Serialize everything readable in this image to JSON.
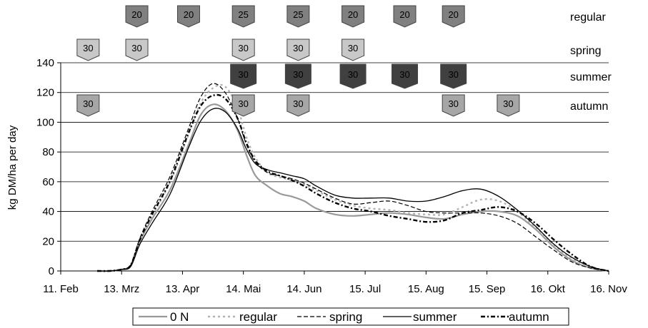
{
  "chart_data": {
    "type": "line",
    "title": "",
    "xlabel": "",
    "ylabel": "kg DM/ha per day",
    "ylim": [
      0,
      140
    ],
    "yticks": [
      0,
      20,
      40,
      60,
      80,
      100,
      120,
      140
    ],
    "xlim": [
      0,
      9
    ],
    "xtick_labels": [
      "11. Feb",
      "13. Mrz",
      "13. Apr",
      "14. Mai",
      "14. Jun",
      "15. Jul",
      "15. Aug",
      "15. Sep",
      "16. Okt",
      "16. Nov"
    ],
    "grid": "horizontal",
    "legend_position": "bottom",
    "series": [
      {
        "name": "0 N",
        "color": "#999999",
        "style": "solid",
        "x": [
          0.6,
          0.8,
          1.0,
          1.15,
          1.3,
          1.5,
          1.8,
          2.1,
          2.3,
          2.5,
          2.7,
          2.9,
          3.05,
          3.2,
          3.4,
          3.6,
          3.8,
          4.0,
          4.2,
          4.5,
          4.8,
          5.1,
          5.4,
          5.7,
          6.0,
          6.3,
          6.6,
          6.9,
          7.2,
          7.5,
          7.8,
          8.1,
          8.4,
          8.7,
          9.0
        ],
        "y": [
          0,
          0,
          1,
          4,
          20,
          35,
          55,
          85,
          105,
          112,
          108,
          95,
          78,
          64,
          57,
          52,
          50,
          47,
          42,
          38,
          37,
          38,
          39,
          38,
          36,
          35,
          38,
          40,
          40,
          37,
          28,
          16,
          7,
          2,
          0
        ]
      },
      {
        "name": "regular",
        "color": "#b3b3b3",
        "style": "dot",
        "x": [
          0.6,
          0.8,
          1.0,
          1.15,
          1.3,
          1.5,
          1.8,
          2.1,
          2.3,
          2.5,
          2.7,
          2.9,
          3.05,
          3.2,
          3.4,
          3.6,
          3.8,
          4.0,
          4.2,
          4.5,
          4.8,
          5.1,
          5.4,
          5.7,
          6.0,
          6.3,
          6.6,
          6.9,
          7.2,
          7.5,
          7.8,
          8.1,
          8.4,
          8.7,
          9.0
        ],
        "y": [
          0,
          0,
          1,
          4,
          21,
          37,
          60,
          92,
          113,
          123,
          124,
          110,
          90,
          76,
          66,
          63,
          61,
          58,
          54,
          48,
          44,
          42,
          41,
          39,
          38,
          38,
          43,
          48,
          47,
          40,
          29,
          17,
          8,
          2,
          0
        ]
      },
      {
        "name": "spring",
        "color": "#000000",
        "style": "dash",
        "x": [
          0.6,
          0.8,
          1.0,
          1.15,
          1.3,
          1.5,
          1.8,
          2.1,
          2.3,
          2.5,
          2.7,
          2.9,
          3.05,
          3.2,
          3.4,
          3.6,
          3.8,
          4.0,
          4.2,
          4.5,
          4.8,
          5.1,
          5.4,
          5.7,
          6.0,
          6.3,
          6.6,
          6.9,
          7.2,
          7.5,
          7.8,
          8.1,
          8.4,
          8.7,
          9.0
        ],
        "y": [
          0,
          0,
          1,
          4,
          22,
          40,
          64,
          96,
          117,
          126,
          120,
          103,
          85,
          73,
          66,
          64,
          62,
          59,
          55,
          49,
          45,
          46,
          47,
          44,
          40,
          39,
          39,
          39,
          37,
          32,
          23,
          14,
          6,
          2,
          0
        ]
      },
      {
        "name": "summer",
        "color": "#000000",
        "style": "solid",
        "x": [
          0.6,
          0.8,
          1.0,
          1.15,
          1.3,
          1.5,
          1.8,
          2.1,
          2.3,
          2.5,
          2.7,
          2.9,
          3.05,
          3.2,
          3.4,
          3.6,
          3.8,
          4.0,
          4.2,
          4.5,
          4.8,
          5.1,
          5.4,
          5.7,
          6.0,
          6.3,
          6.6,
          6.9,
          7.2,
          7.5,
          7.8,
          8.1,
          8.4,
          8.7,
          9.0
        ],
        "y": [
          0,
          0,
          1,
          3,
          18,
          32,
          52,
          83,
          101,
          109,
          107,
          96,
          82,
          72,
          68,
          66,
          64,
          62,
          57,
          51,
          49,
          49,
          49,
          47,
          47,
          50,
          54,
          55,
          50,
          41,
          30,
          18,
          9,
          3,
          0
        ]
      },
      {
        "name": "autumn",
        "color": "#000000",
        "style": "dashdot",
        "x": [
          0.6,
          0.8,
          1.0,
          1.15,
          1.3,
          1.5,
          1.8,
          2.1,
          2.3,
          2.5,
          2.7,
          2.9,
          3.05,
          3.2,
          3.4,
          3.6,
          3.8,
          4.0,
          4.2,
          4.5,
          4.8,
          5.1,
          5.4,
          5.7,
          6.0,
          6.3,
          6.6,
          6.9,
          7.2,
          7.5,
          7.8,
          8.1,
          8.4,
          8.7,
          9.0
        ],
        "y": [
          0,
          0,
          1,
          4,
          21,
          38,
          61,
          93,
          111,
          118,
          116,
          103,
          86,
          74,
          67,
          64,
          61,
          57,
          52,
          46,
          42,
          40,
          37,
          35,
          33,
          34,
          39,
          41,
          43,
          40,
          32,
          21,
          11,
          3,
          0
        ]
      }
    ],
    "events": [
      {
        "name": "regular",
        "fill": "#808080",
        "markers": [
          {
            "x": 1.25,
            "label": "20"
          },
          {
            "x": 2.1,
            "label": "20"
          },
          {
            "x": 3.0,
            "label": "25"
          },
          {
            "x": 3.9,
            "label": "25"
          },
          {
            "x": 4.8,
            "label": "20"
          },
          {
            "x": 5.65,
            "label": "20"
          },
          {
            "x": 6.45,
            "label": "20"
          }
        ]
      },
      {
        "name": "spring",
        "fill": "#c8c8c8",
        "markers": [
          {
            "x": 0.45,
            "label": "30"
          },
          {
            "x": 1.25,
            "label": "30"
          },
          {
            "x": 3.0,
            "label": "30"
          },
          {
            "x": 3.9,
            "label": "30"
          },
          {
            "x": 4.8,
            "label": "30"
          }
        ]
      },
      {
        "name": "summer",
        "fill": "#404040",
        "markers": [
          {
            "x": 3.0,
            "label": "30"
          },
          {
            "x": 3.9,
            "label": "30"
          },
          {
            "x": 4.8,
            "label": "30"
          },
          {
            "x": 5.65,
            "label": "30"
          },
          {
            "x": 6.45,
            "label": "30"
          }
        ]
      },
      {
        "name": "autumn",
        "fill": "#a6a6a6",
        "markers": [
          {
            "x": 0.45,
            "label": "30"
          },
          {
            "x": 3.0,
            "label": "30"
          },
          {
            "x": 3.9,
            "label": "30"
          },
          {
            "x": 6.45,
            "label": "30"
          },
          {
            "x": 7.35,
            "label": "30"
          }
        ]
      }
    ]
  }
}
